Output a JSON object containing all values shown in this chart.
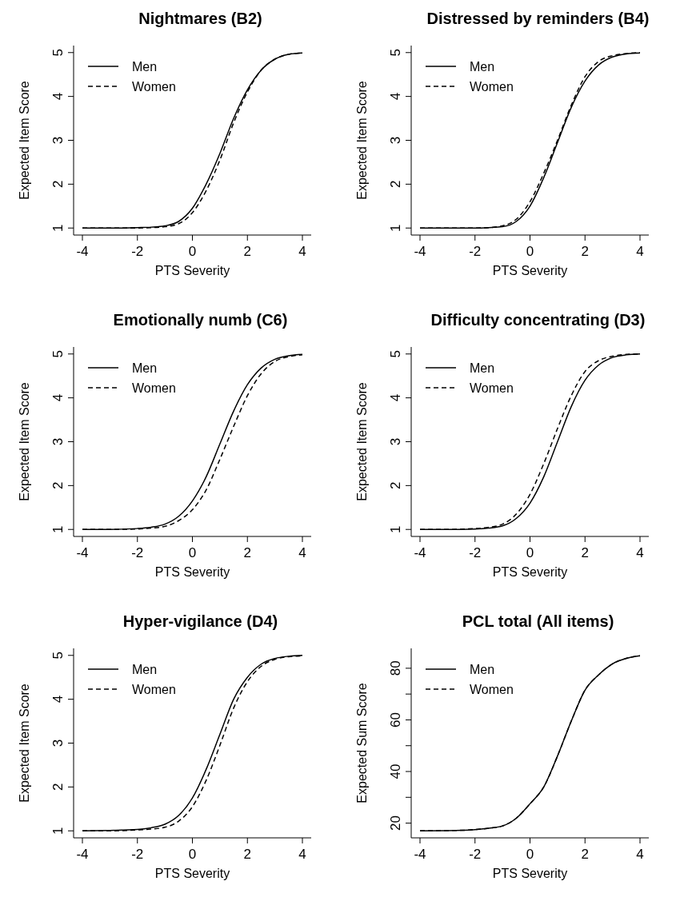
{
  "chart_data": [
    {
      "type": "line",
      "title": "Nightmares (B2)",
      "xlabel": "PTS Severity",
      "ylabel": "Expected Item Score",
      "xlim": [
        -4.32,
        4.32
      ],
      "ylim": [
        0.84,
        5.16
      ],
      "xticks": [
        -4,
        -2,
        0,
        2,
        4
      ],
      "yticks": [
        1,
        2,
        3,
        4,
        5
      ],
      "legend": "top left",
      "grid": false,
      "x": [
        -4,
        -3,
        -2,
        -1.5,
        -1,
        -0.5,
        0,
        0.5,
        1,
        1.5,
        2,
        2.5,
        3,
        3.5,
        4
      ],
      "series": [
        {
          "name": "Men",
          "color": "#000000",
          "line_style": "solid",
          "values": [
            1,
            1,
            1.01,
            1.02,
            1.05,
            1.15,
            1.45,
            2.0,
            2.7,
            3.5,
            4.15,
            4.6,
            4.85,
            4.96,
            4.99
          ]
        },
        {
          "name": "Women",
          "color": "#000000",
          "line_style": "dashed",
          "values": [
            1,
            1,
            1,
            1.01,
            1.03,
            1.1,
            1.35,
            1.85,
            2.55,
            3.4,
            4.1,
            4.6,
            4.85,
            4.96,
            4.99
          ]
        }
      ]
    },
    {
      "type": "line",
      "title": "Distressed by reminders (B4)",
      "xlabel": "PTS Severity",
      "ylabel": "Expected Item Score",
      "xlim": [
        -4.32,
        4.32
      ],
      "ylim": [
        0.84,
        5.16
      ],
      "xticks": [
        -4,
        -2,
        0,
        2,
        4
      ],
      "yticks": [
        1,
        2,
        3,
        4,
        5
      ],
      "legend": "top left",
      "grid": false,
      "x": [
        -4,
        -3,
        -2,
        -1.5,
        -1,
        -0.5,
        0,
        0.5,
        1,
        1.5,
        2,
        2.5,
        3,
        3.5,
        4
      ],
      "series": [
        {
          "name": "Men",
          "color": "#000000",
          "line_style": "solid",
          "values": [
            1,
            1,
            1,
            1.01,
            1.03,
            1.15,
            1.5,
            2.15,
            2.95,
            3.75,
            4.35,
            4.72,
            4.9,
            4.97,
            4.99
          ]
        },
        {
          "name": "Women",
          "color": "#000000",
          "line_style": "dashed",
          "values": [
            1,
            1,
            1,
            1.01,
            1.05,
            1.2,
            1.6,
            2.25,
            3.0,
            3.8,
            4.45,
            4.8,
            4.93,
            4.98,
            5.0
          ]
        }
      ]
    },
    {
      "type": "line",
      "title": "Emotionally numb (C6)",
      "xlabel": "PTS Severity",
      "ylabel": "Expected Item Score",
      "xlim": [
        -4.32,
        4.32
      ],
      "ylim": [
        0.84,
        5.16
      ],
      "xticks": [
        -4,
        -2,
        0,
        2,
        4
      ],
      "yticks": [
        1,
        2,
        3,
        4,
        5
      ],
      "legend": "top left",
      "grid": false,
      "x": [
        -4,
        -3,
        -2,
        -1.5,
        -1,
        -0.5,
        0,
        0.5,
        1,
        1.5,
        2,
        2.5,
        3,
        3.5,
        4
      ],
      "series": [
        {
          "name": "Men",
          "color": "#000000",
          "line_style": "solid",
          "values": [
            1,
            1,
            1.02,
            1.05,
            1.12,
            1.3,
            1.65,
            2.2,
            2.95,
            3.7,
            4.3,
            4.68,
            4.88,
            4.96,
            4.99
          ]
        },
        {
          "name": "Women",
          "color": "#000000",
          "line_style": "dashed",
          "values": [
            1,
            1,
            1.01,
            1.03,
            1.07,
            1.2,
            1.45,
            1.9,
            2.6,
            3.35,
            4.05,
            4.55,
            4.83,
            4.94,
            4.98
          ]
        }
      ]
    },
    {
      "type": "line",
      "title": "Difficulty concentrating (D3)",
      "xlabel": "PTS Severity",
      "ylabel": "Expected Item Score",
      "xlim": [
        -4.32,
        4.32
      ],
      "ylim": [
        0.84,
        5.16
      ],
      "xticks": [
        -4,
        -2,
        0,
        2,
        4
      ],
      "yticks": [
        1,
        2,
        3,
        4,
        5
      ],
      "legend": "top left",
      "grid": false,
      "x": [
        -4,
        -3,
        -2,
        -1.5,
        -1,
        -0.5,
        0,
        0.5,
        1,
        1.5,
        2,
        2.5,
        3,
        3.5,
        4
      ],
      "series": [
        {
          "name": "Men",
          "color": "#000000",
          "line_style": "solid",
          "values": [
            1,
            1,
            1.01,
            1.03,
            1.08,
            1.25,
            1.6,
            2.2,
            3.0,
            3.8,
            4.4,
            4.75,
            4.92,
            4.98,
            5.0
          ]
        },
        {
          "name": "Women",
          "color": "#000000",
          "line_style": "dashed",
          "values": [
            1,
            1,
            1.02,
            1.05,
            1.12,
            1.35,
            1.8,
            2.5,
            3.3,
            4.05,
            4.6,
            4.85,
            4.95,
            4.99,
            5.0
          ]
        }
      ]
    },
    {
      "type": "line",
      "title": "Hyper-vigilance (D4)",
      "xlabel": "PTS Severity",
      "ylabel": "Expected Item Score",
      "xlim": [
        -4.32,
        4.32
      ],
      "ylim": [
        0.84,
        5.16
      ],
      "xticks": [
        -4,
        -2,
        0,
        2,
        4
      ],
      "yticks": [
        1,
        2,
        3,
        4,
        5
      ],
      "legend": "top left",
      "grid": false,
      "x": [
        -4,
        -3,
        -2,
        -1.5,
        -1,
        -0.5,
        0,
        0.5,
        1,
        1.5,
        2,
        2.5,
        3,
        3.5,
        4
      ],
      "series": [
        {
          "name": "Men",
          "color": "#000000",
          "line_style": "solid",
          "values": [
            1,
            1.01,
            1.03,
            1.07,
            1.15,
            1.35,
            1.75,
            2.4,
            3.2,
            4.0,
            4.5,
            4.8,
            4.93,
            4.98,
            5.0
          ]
        },
        {
          "name": "Women",
          "color": "#000000",
          "line_style": "dashed",
          "values": [
            1,
            1,
            1.02,
            1.04,
            1.08,
            1.22,
            1.55,
            2.15,
            2.95,
            3.8,
            4.4,
            4.75,
            4.91,
            4.97,
            4.99
          ]
        }
      ]
    },
    {
      "type": "line",
      "title": "PCL total (All items)",
      "xlabel": "PTS Severity",
      "ylabel": "Expected Sum Score",
      "xlim": [
        -4.32,
        4.32
      ],
      "ylim": [
        14.3,
        87.7
      ],
      "xticks": [
        -4,
        -2,
        0,
        2,
        4
      ],
      "yticks": [
        20,
        {
          "value": 30,
          "label": null
        },
        40,
        {
          "value": 50,
          "label": null
        },
        60,
        {
          "value": 70,
          "label": null
        },
        80
      ],
      "legend": "top left",
      "grid": false,
      "x": [
        -4,
        -3,
        -2,
        -1.5,
        -1,
        -0.5,
        0,
        0.5,
        1,
        1.5,
        2,
        2.5,
        3,
        3.5,
        4
      ],
      "series": [
        {
          "name": "Men",
          "color": "#000000",
          "line_style": "solid",
          "values": [
            17,
            17.1,
            17.5,
            18,
            18.9,
            21.9,
            27.5,
            34,
            46,
            59.5,
            71.5,
            77.5,
            81.7,
            83.8,
            84.8
          ]
        },
        {
          "name": "Women",
          "color": "#000000",
          "line_style": "dashed",
          "values": [
            17,
            17.1,
            17.5,
            18,
            18.9,
            21.9,
            27.5,
            34,
            46,
            59.5,
            71.5,
            77.5,
            81.7,
            83.8,
            84.8
          ]
        }
      ]
    }
  ]
}
